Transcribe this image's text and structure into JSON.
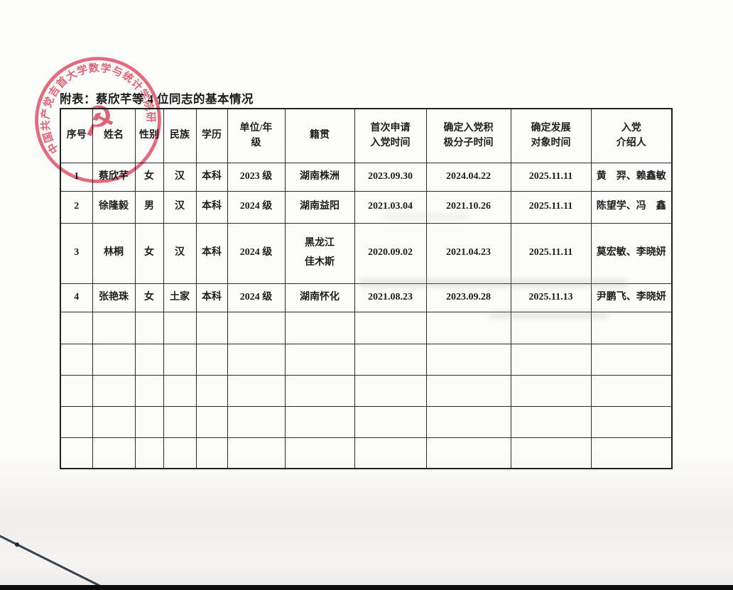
{
  "document": {
    "title": "附表：蔡欣芊等 4 位同志的基本情况",
    "stamp": {
      "ring_text": "中国共产党吉首大学数学与统计学院研究生支部委员会",
      "emblem_glyph": "☭",
      "color": "#da3f57"
    },
    "table": {
      "headers": [
        "序号",
        "姓名",
        "性别",
        "民族",
        "学历",
        "单位/年\n级",
        "籍贯",
        "首次申请\n入党时间",
        "确定入党积\n极分子时间",
        "确定发展\n对象时间",
        "入党\n介绍人"
      ],
      "rows": [
        [
          "1",
          "蔡欣芊",
          "女",
          "汉",
          "本科",
          "2023 级",
          "湖南株洲",
          "2023.09.30",
          "2024.04.22",
          "2025.11.11",
          "黄　羿、赖鑫敏"
        ],
        [
          "2",
          "徐隆毅",
          "男",
          "汉",
          "本科",
          "2024 级",
          "湖南益阳",
          "2021.03.04",
          "2021.10.26",
          "2025.11.11",
          "陈望学、冯　鑫"
        ],
        [
          "3",
          "林桐",
          "女",
          "汉",
          "本科",
          "2024 级",
          "黑龙江\n佳木斯",
          "2020.09.02",
          "2021.04.23",
          "2025.11.11",
          "莫宏敏、李晓妍"
        ],
        [
          "4",
          "张艳珠",
          "女",
          "土家",
          "本科",
          "2024 级",
          "湖南怀化",
          "2021.08.23",
          "2023.09.28",
          "2025.11.13",
          "尹鹏飞、李晓妍"
        ],
        [
          "",
          "",
          "",
          "",
          "",
          "",
          "",
          "",
          "",
          "",
          ""
        ],
        [
          "",
          "",
          "",
          "",
          "",
          "",
          "",
          "",
          "",
          "",
          ""
        ],
        [
          "",
          "",
          "",
          "",
          "",
          "",
          "",
          "",
          "",
          "",
          ""
        ],
        [
          "",
          "",
          "",
          "",
          "",
          "",
          "",
          "",
          "",
          "",
          ""
        ],
        [
          "",
          "",
          "",
          "",
          "",
          "",
          "",
          "",
          "",
          "",
          ""
        ]
      ]
    }
  }
}
